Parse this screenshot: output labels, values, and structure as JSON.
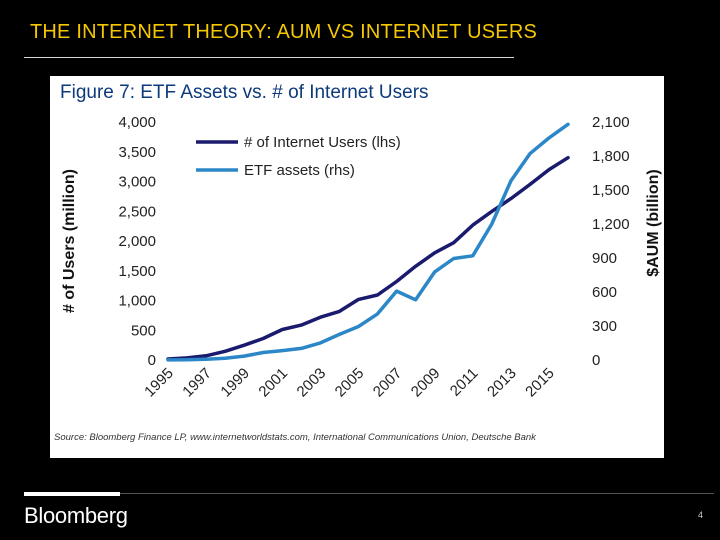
{
  "slide": {
    "title": "THE INTERNET THEORY: AUM VS INTERNET USERS",
    "brand": "Bloomberg",
    "page_number": "4"
  },
  "colors": {
    "title": "#f5c800",
    "users_line": "#1a1a6e",
    "etf_line": "#2b87c8",
    "figure_title": "#0c3a7a"
  },
  "chart_data": {
    "type": "line",
    "title": "Figure 7: ETF Assets vs. # of Internet Users",
    "source": "Source: Bloomberg Finance LP, www.internetworldstats.com, International Communications Union, Deutsche Bank",
    "x": [
      1995,
      1996,
      1997,
      1998,
      1999,
      2000,
      2001,
      2002,
      2003,
      2004,
      2005,
      2006,
      2007,
      2008,
      2009,
      2010,
      2011,
      2012,
      2013,
      2014,
      2015,
      2016
    ],
    "x_tick_labels": [
      "1995",
      "1997",
      "1999",
      "2001",
      "2003",
      "2005",
      "2007",
      "2009",
      "2011",
      "2013",
      "2015"
    ],
    "ylabel_left": "# of Users (million)",
    "ylabel_right": "$AUM (billion)",
    "ylim_left": [
      0,
      4000
    ],
    "ylim_right": [
      0,
      2100
    ],
    "yticks_left": [
      "0",
      "500",
      "1,000",
      "1,500",
      "2,000",
      "2,500",
      "3,000",
      "3,500",
      "4,000"
    ],
    "yticks_right": [
      "0",
      "300",
      "600",
      "900",
      "1,200",
      "1,500",
      "1,800",
      "2,100"
    ],
    "grid": false,
    "legend_position": "top-left",
    "series": [
      {
        "name": "# of Internet Users (lhs)",
        "axis": "left",
        "values": [
          16,
          36,
          70,
          147,
          248,
          361,
          513,
          587,
          719,
          817,
          1018,
          1093,
          1319,
          1574,
          1802,
          1971,
          2267,
          2497,
          2713,
          2950,
          3200,
          3400
        ]
      },
      {
        "name": "ETF assets (rhs)",
        "axis": "right",
        "values": [
          1,
          2,
          7,
          16,
          34,
          66,
          83,
          102,
          151,
          226,
          296,
          407,
          608,
          531,
          777,
          896,
          919,
          1200,
          1580,
          1820,
          1960,
          2080
        ]
      }
    ]
  }
}
